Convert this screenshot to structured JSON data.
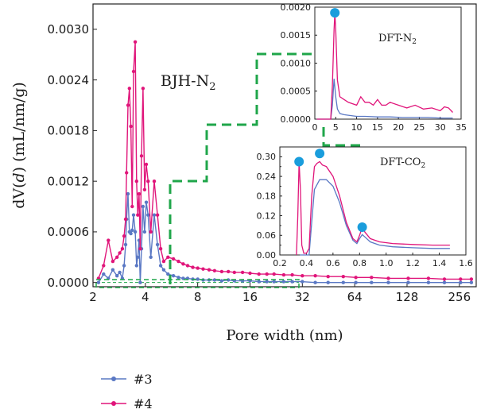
{
  "chart_data": [
    {
      "type": "line",
      "title": "",
      "annotation": {
        "text": "BJH-N",
        "sub": "2"
      },
      "xlabel": "Pore width (nm)",
      "ylabel": {
        "pre": "dV(",
        "var": "d",
        "post": ") (mL/nm/g)"
      },
      "x_scale": "log2",
      "xlim": [
        2,
        320
      ],
      "ylim": [
        -5e-05,
        0.0033
      ],
      "xticks": [
        2,
        4,
        8,
        16,
        32,
        64,
        128,
        256
      ],
      "xtick_labels": [
        "2",
        "4",
        "8",
        "16",
        "32",
        "64",
        "128",
        "256"
      ],
      "yticks": [
        0,
        0.0006,
        0.0012,
        0.0018,
        0.0024,
        0.003
      ],
      "ytick_labels": [
        "0.0000",
        "0.0006",
        "0.0012",
        "0.0018",
        "0.0024",
        "0.0030"
      ],
      "legend_position": "bottom-left",
      "series": [
        {
          "name": "#3",
          "color": "#5a78c4",
          "x": [
            2.15,
            2.3,
            2.45,
            2.6,
            2.75,
            2.85,
            2.95,
            3.02,
            3.08,
            3.12,
            3.18,
            3.24,
            3.3,
            3.36,
            3.42,
            3.5,
            3.56,
            3.62,
            3.68,
            3.74,
            3.8,
            3.88,
            3.96,
            4.05,
            4.15,
            4.3,
            4.5,
            4.7,
            4.9,
            5.1,
            5.4,
            5.8,
            6.2,
            6.6,
            7.0,
            7.5,
            8.0,
            8.6,
            9.3,
            10,
            11,
            12,
            13,
            14.5,
            16,
            18,
            20,
            22,
            25,
            28,
            32,
            38,
            45,
            55,
            65,
            80,
            100,
            130,
            170,
            210,
            260,
            300
          ],
          "y": [
            0.0,
            0.0001,
            5e-05,
            0.00015,
            8e-05,
            0.00012,
            5e-05,
            0.0002,
            0.00045,
            0.00075,
            0.00105,
            0.0006,
            0.00058,
            0.00062,
            0.0008,
            0.0006,
            0.0002,
            0.0003,
            0.0005,
            0.0,
            0.0004,
            0.0009,
            0.0006,
            0.00095,
            0.0008,
            0.0003,
            0.0008,
            0.00045,
            0.0002,
            0.00015,
            0.0001,
            8e-05,
            6e-05,
            5e-05,
            5e-05,
            4e-05,
            4e-05,
            3e-05,
            3e-05,
            3e-05,
            2e-05,
            3e-05,
            2e-05,
            2e-05,
            2e-05,
            1e-05,
            1e-05,
            1e-05,
            1e-05,
            1e-05,
            1e-05,
            0.0,
            0.0,
            0.0,
            0.0,
            0.0,
            0.0,
            0.0,
            0.0,
            0.0,
            0.0,
            0.0
          ]
        },
        {
          "name": "#4",
          "color": "#e0157a",
          "x": [
            2.15,
            2.3,
            2.45,
            2.6,
            2.75,
            2.85,
            2.95,
            3.02,
            3.08,
            3.12,
            3.18,
            3.24,
            3.3,
            3.36,
            3.42,
            3.5,
            3.56,
            3.62,
            3.68,
            3.74,
            3.8,
            3.88,
            3.96,
            4.05,
            4.15,
            4.3,
            4.5,
            4.7,
            4.9,
            5.1,
            5.4,
            5.8,
            6.2,
            6.6,
            7.0,
            7.5,
            8.0,
            8.6,
            9.3,
            10,
            11,
            12,
            13,
            14.5,
            16,
            18,
            20,
            22,
            25,
            28,
            32,
            38,
            45,
            55,
            65,
            80,
            100,
            130,
            170,
            210,
            260,
            300
          ],
          "y": [
            5e-05,
            0.0002,
            0.0005,
            0.00025,
            0.0003,
            0.00035,
            0.0004,
            0.00055,
            0.00075,
            0.0013,
            0.0021,
            0.0023,
            0.00185,
            0.0009,
            0.0025,
            0.00285,
            0.0012,
            0.0008,
            0.00105,
            0.0004,
            0.0015,
            0.0023,
            0.0011,
            0.0014,
            0.0012,
            0.0006,
            0.0012,
            0.0008,
            0.0004,
            0.00025,
            0.0003,
            0.00028,
            0.00025,
            0.00022,
            0.0002,
            0.00018,
            0.00017,
            0.00016,
            0.00015,
            0.00014,
            0.00013,
            0.00013,
            0.00012,
            0.00012,
            0.00011,
            0.0001,
            0.0001,
            0.0001,
            9e-05,
            9e-05,
            8e-05,
            8e-05,
            7e-05,
            7e-05,
            6e-05,
            6e-05,
            5e-05,
            5e-05,
            5e-05,
            4e-05,
            4e-05,
            4e-05
          ]
        }
      ]
    },
    {
      "type": "line",
      "title": "",
      "annotation": {
        "text": "DFT-N",
        "sub": "2"
      },
      "xlim": [
        0,
        35
      ],
      "ylim": [
        0,
        0.002
      ],
      "xticks": [
        0,
        5,
        10,
        15,
        20,
        25,
        30,
        35
      ],
      "xtick_labels": [
        "0",
        "5",
        "10",
        "15",
        "20",
        "25",
        "30",
        "35"
      ],
      "yticks": [
        0,
        0.0005,
        0.001,
        0.0015,
        0.002
      ],
      "ytick_labels": [
        "0.0000",
        "0.0005",
        "0.0010",
        "0.0015",
        "0.0020"
      ],
      "marker": {
        "x": 4.8,
        "y": 0.0019,
        "color": "#1a9ddc"
      },
      "series": [
        {
          "name": "#3",
          "color": "#5a78c4",
          "x": [
            0.5,
            2,
            3,
            3.8,
            4.2,
            4.6,
            5.0,
            5.4,
            6,
            7,
            8,
            10,
            12,
            15,
            18,
            21,
            24,
            27,
            30,
            33
          ],
          "y": [
            0.0,
            0.0,
            0.0,
            0.0,
            0.00025,
            0.00072,
            0.0004,
            0.00018,
            0.0001,
            8e-05,
            7e-05,
            5e-05,
            5e-05,
            4e-05,
            4e-05,
            3e-05,
            3e-05,
            3e-05,
            2e-05,
            2e-05
          ]
        },
        {
          "name": "#4",
          "color": "#e0157a",
          "x": [
            0.5,
            2,
            3,
            3.8,
            4.2,
            4.6,
            4.8,
            5.0,
            5.4,
            6,
            7,
            8,
            10,
            11,
            12,
            13,
            14,
            15,
            16,
            17,
            18,
            20,
            22,
            24,
            26,
            28,
            30,
            31,
            32,
            33
          ],
          "y": [
            0.0,
            0.0,
            0.0,
            0.0,
            0.0006,
            0.0016,
            0.0019,
            0.0016,
            0.0007,
            0.0004,
            0.00035,
            0.0003,
            0.00025,
            0.0004,
            0.0003,
            0.0003,
            0.00025,
            0.00035,
            0.00025,
            0.00025,
            0.0003,
            0.00025,
            0.0002,
            0.00025,
            0.00018,
            0.0002,
            0.00015,
            0.00022,
            0.0002,
            0.00012
          ]
        }
      ]
    },
    {
      "type": "line",
      "title": "",
      "annotation": {
        "text": "DFT-CO",
        "sub": "2"
      },
      "xlim": [
        0.2,
        1.6
      ],
      "ylim": [
        0,
        0.33
      ],
      "xticks": [
        0.2,
        0.4,
        0.6,
        0.8,
        1.0,
        1.2,
        1.4,
        1.6
      ],
      "xtick_labels": [
        "0.2",
        "0.4",
        "0.6",
        "0.8",
        "1.0",
        "1.2",
        "1.4",
        "1.6"
      ],
      "yticks": [
        0,
        0.03,
        0.06,
        0.09,
        0.12,
        0.15,
        0.18,
        0.21,
        0.24,
        0.27,
        0.3
      ],
      "ytick_labels": [
        "0.00",
        "0.03",
        "0.06",
        "0.09",
        "0.12",
        "0.15",
        "0.18",
        "0.21",
        "0.24",
        "0.27",
        "0.30"
      ],
      "markers": [
        {
          "x": 0.345,
          "y": 0.285,
          "color": "#1a9ddc"
        },
        {
          "x": 0.5,
          "y": 0.31,
          "color": "#1a9ddc"
        },
        {
          "x": 0.82,
          "y": 0.085,
          "color": "#1a9ddc"
        }
      ],
      "series": [
        {
          "name": "#3",
          "color": "#5a78c4",
          "x": [
            0.35,
            0.36,
            0.38,
            0.4,
            0.42,
            0.44,
            0.46,
            0.5,
            0.55,
            0.6,
            0.65,
            0.7,
            0.75,
            0.78,
            0.8,
            0.82,
            0.84,
            0.88,
            0.95,
            1.05,
            1.2,
            1.35,
            1.48
          ],
          "y": [
            0.0,
            0.0,
            0.0,
            0.0,
            0.0,
            0.1,
            0.2,
            0.23,
            0.23,
            0.21,
            0.16,
            0.09,
            0.045,
            0.035,
            0.05,
            0.062,
            0.055,
            0.04,
            0.03,
            0.025,
            0.022,
            0.02,
            0.02
          ]
        },
        {
          "name": "#4",
          "color": "#e0157a",
          "x": [
            0.325,
            0.335,
            0.345,
            0.355,
            0.365,
            0.38,
            0.4,
            0.42,
            0.44,
            0.46,
            0.48,
            0.5,
            0.52,
            0.55,
            0.6,
            0.65,
            0.7,
            0.75,
            0.78,
            0.8,
            0.82,
            0.84,
            0.88,
            0.95,
            1.05,
            1.2,
            1.35,
            1.48
          ],
          "y": [
            0.0,
            0.12,
            0.285,
            0.2,
            0.03,
            0.005,
            0.005,
            0.02,
            0.18,
            0.27,
            0.28,
            0.285,
            0.275,
            0.27,
            0.24,
            0.18,
            0.1,
            0.05,
            0.04,
            0.06,
            0.085,
            0.07,
            0.05,
            0.04,
            0.035,
            0.032,
            0.03,
            0.03
          ]
        }
      ]
    }
  ],
  "legend": {
    "items": [
      {
        "label": "#3",
        "color": "#5a78c4"
      },
      {
        "label": "#4",
        "color": "#e0157a"
      }
    ]
  }
}
